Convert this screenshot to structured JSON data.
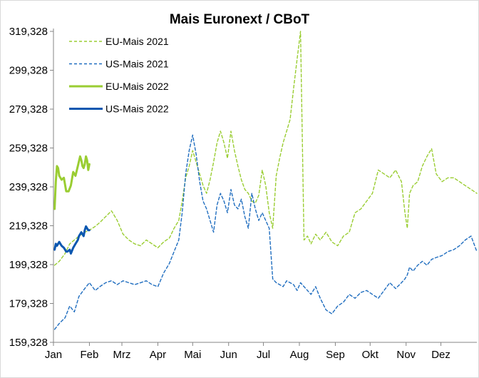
{
  "chart_data": {
    "type": "line",
    "title": "Mais Euronext / CBoT",
    "xlabel": "",
    "ylabel": "",
    "ylim": [
      159.328,
      319.328
    ],
    "y_ticks": [
      "159,328",
      "179,328",
      "199,328",
      "219,328",
      "239,328",
      "259,328",
      "279,328",
      "299,328",
      "319,328"
    ],
    "y_tick_values": [
      159.328,
      179.328,
      199.328,
      219.328,
      239.328,
      259.328,
      279.328,
      299.328,
      319.328
    ],
    "x_ticks": [
      "Jan",
      "Feb",
      "Mrz",
      "Apr",
      "Mai",
      "Jun",
      "Jul",
      "Aug",
      "Sep",
      "Okt",
      "Nov",
      "Dez"
    ],
    "x_tick_days": [
      0,
      31,
      59,
      90,
      120,
      151,
      181,
      212,
      243,
      273,
      304,
      334
    ],
    "xlim": [
      0,
      365
    ],
    "legend_position": "top-left",
    "series": [
      {
        "name": "EU-Mais 2021",
        "color": "#9acd32",
        "style": "dashed",
        "x": [
          1,
          5,
          10,
          14,
          18,
          22,
          27,
          31,
          36,
          40,
          45,
          50,
          55,
          60,
          65,
          70,
          75,
          80,
          85,
          90,
          95,
          100,
          104,
          108,
          111,
          114,
          117,
          120,
          123,
          126,
          129,
          132,
          135,
          138,
          141,
          144,
          147,
          150,
          153,
          156,
          159,
          162,
          165,
          168,
          171,
          174,
          177,
          180,
          183,
          186,
          189,
          192,
          195,
          198,
          201,
          204,
          207,
          210,
          213,
          216,
          219,
          222,
          226,
          230,
          235,
          240,
          245,
          250,
          255,
          260,
          265,
          270,
          275,
          280,
          285,
          290,
          295,
          300,
          303,
          305,
          307,
          310,
          314,
          318,
          322,
          326,
          330,
          335,
          340,
          345,
          350,
          355,
          360,
          365
        ],
        "values": [
          199,
          201,
          205,
          210,
          212,
          214,
          216,
          217,
          219,
          221,
          224,
          227,
          222,
          215,
          212,
          210,
          209,
          212,
          210,
          208,
          211,
          213,
          218,
          222,
          232,
          244,
          250,
          258,
          252,
          246,
          240,
          236,
          243,
          252,
          262,
          268,
          262,
          254,
          268,
          258,
          250,
          243,
          238,
          236,
          232,
          231,
          235,
          248,
          240,
          226,
          218,
          245,
          254,
          262,
          268,
          274,
          290,
          305,
          322,
          212,
          214,
          210,
          215,
          212,
          216,
          211,
          209,
          214,
          216,
          226,
          228,
          232,
          236,
          248,
          246,
          244,
          248,
          242,
          226,
          218,
          236,
          240,
          242,
          250,
          255,
          259,
          246,
          242,
          244,
          244,
          242,
          240,
          238,
          236
        ]
      },
      {
        "name": "US-Mais 2021",
        "color": "#1f6dbf",
        "style": "dashed",
        "x": [
          1,
          5,
          10,
          14,
          18,
          22,
          27,
          31,
          36,
          40,
          45,
          50,
          55,
          60,
          65,
          70,
          75,
          80,
          85,
          90,
          95,
          100,
          104,
          108,
          111,
          114,
          117,
          120,
          123,
          126,
          129,
          132,
          135,
          138,
          141,
          144,
          147,
          150,
          153,
          156,
          159,
          162,
          165,
          168,
          171,
          174,
          177,
          180,
          183,
          186,
          189,
          192,
          195,
          198,
          201,
          204,
          207,
          210,
          213,
          216,
          219,
          222,
          226,
          230,
          235,
          240,
          245,
          250,
          255,
          260,
          265,
          270,
          275,
          280,
          285,
          290,
          295,
          300,
          303,
          305,
          307,
          310,
          314,
          318,
          322,
          326,
          330,
          335,
          340,
          345,
          350,
          355,
          360,
          365
        ],
        "values": [
          166,
          169,
          172,
          178,
          175,
          183,
          187,
          190,
          186,
          188,
          190,
          191,
          189,
          191,
          190,
          189,
          190,
          191,
          189,
          188,
          195,
          200,
          206,
          212,
          226,
          246,
          258,
          266,
          256,
          242,
          232,
          228,
          222,
          216,
          230,
          236,
          232,
          226,
          238,
          230,
          228,
          233,
          224,
          218,
          236,
          228,
          222,
          226,
          222,
          218,
          192,
          190,
          189,
          188,
          191,
          190,
          189,
          186,
          190,
          188,
          186,
          184,
          188,
          182,
          176,
          174,
          178,
          180,
          184,
          182,
          185,
          186,
          184,
          182,
          186,
          190,
          187,
          190,
          192,
          194,
          198,
          196,
          199,
          201,
          199,
          202,
          203,
          204,
          206,
          207,
          209,
          212,
          214,
          206
        ]
      },
      {
        "name": "EU-Mais 2022",
        "color": "#9acd32",
        "style": "solid",
        "x": [
          1,
          2,
          3,
          4,
          5,
          7,
          9,
          11,
          13,
          15,
          17,
          19,
          21,
          23,
          24,
          25,
          26,
          27,
          28,
          29,
          30,
          31
        ],
        "values": [
          228,
          242,
          250,
          249,
          245,
          243,
          244,
          237,
          237,
          240,
          247,
          245,
          250,
          255,
          253,
          250,
          249,
          251,
          255,
          253,
          248,
          251
        ]
      },
      {
        "name": "US-Mais 2022",
        "color": "#0b57b0",
        "style": "solid",
        "x": [
          1,
          2,
          3,
          5,
          7,
          9,
          10,
          11,
          12,
          14,
          15,
          17,
          19,
          21,
          22,
          24,
          25,
          26,
          27,
          28,
          29,
          30,
          31
        ],
        "values": [
          207,
          210,
          209,
          211,
          209,
          208,
          207,
          206,
          206,
          207,
          205,
          208,
          210,
          212,
          214,
          216,
          215,
          214,
          217,
          219,
          218,
          217,
          217
        ]
      }
    ]
  }
}
